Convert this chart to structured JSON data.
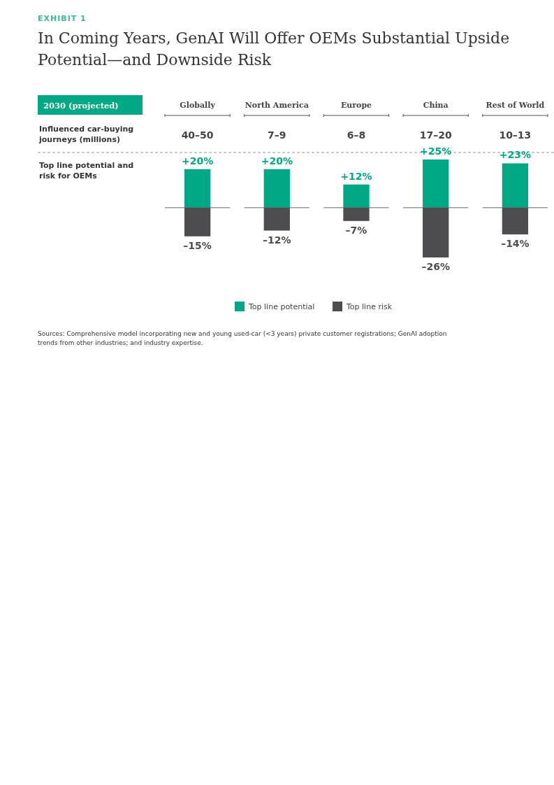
{
  "chart_data": {
    "type": "bar",
    "subtitle": "EXHIBIT 1",
    "title": "In Coming Years, GenAI Will Offer OEMs Substantial Upside Potential—and Downside Risk",
    "ylabel": "Top line potential and risk for OEMs",
    "categories": [
      "Globally",
      "North America",
      "Europe",
      "China",
      "Rest of World"
    ],
    "series": [
      {
        "name": "Top line potential",
        "color": "#00a886",
        "values": [
          20,
          20,
          12,
          25,
          23
        ],
        "value_labels": [
          "+20%",
          "+20%",
          "+12%",
          "+25%",
          "+23%"
        ]
      },
      {
        "name": "Top line risk",
        "color": "#4d4d4f",
        "values": [
          -15,
          -12,
          -7,
          -26,
          -14
        ],
        "value_labels": [
          "–15%",
          "–12%",
          "–7%",
          "–26%",
          "–14%"
        ]
      }
    ],
    "legend": "bottom",
    "stacked": true,
    "ref_lines": [
      {
        "axis": "y",
        "value": 0,
        "color": "#999999"
      }
    ],
    "annotations": [
      "2030 (projected)",
      "Influenced car-buying journeys (millions)",
      "40–50",
      "7–9",
      "6–8",
      "17–20",
      "10–13",
      "Sources: Comprehensive model incorporating new and young used-car (<3 years) private customer registrations; GenAI adoption trends from other industries; and industry expertise."
    ]
  }
}
